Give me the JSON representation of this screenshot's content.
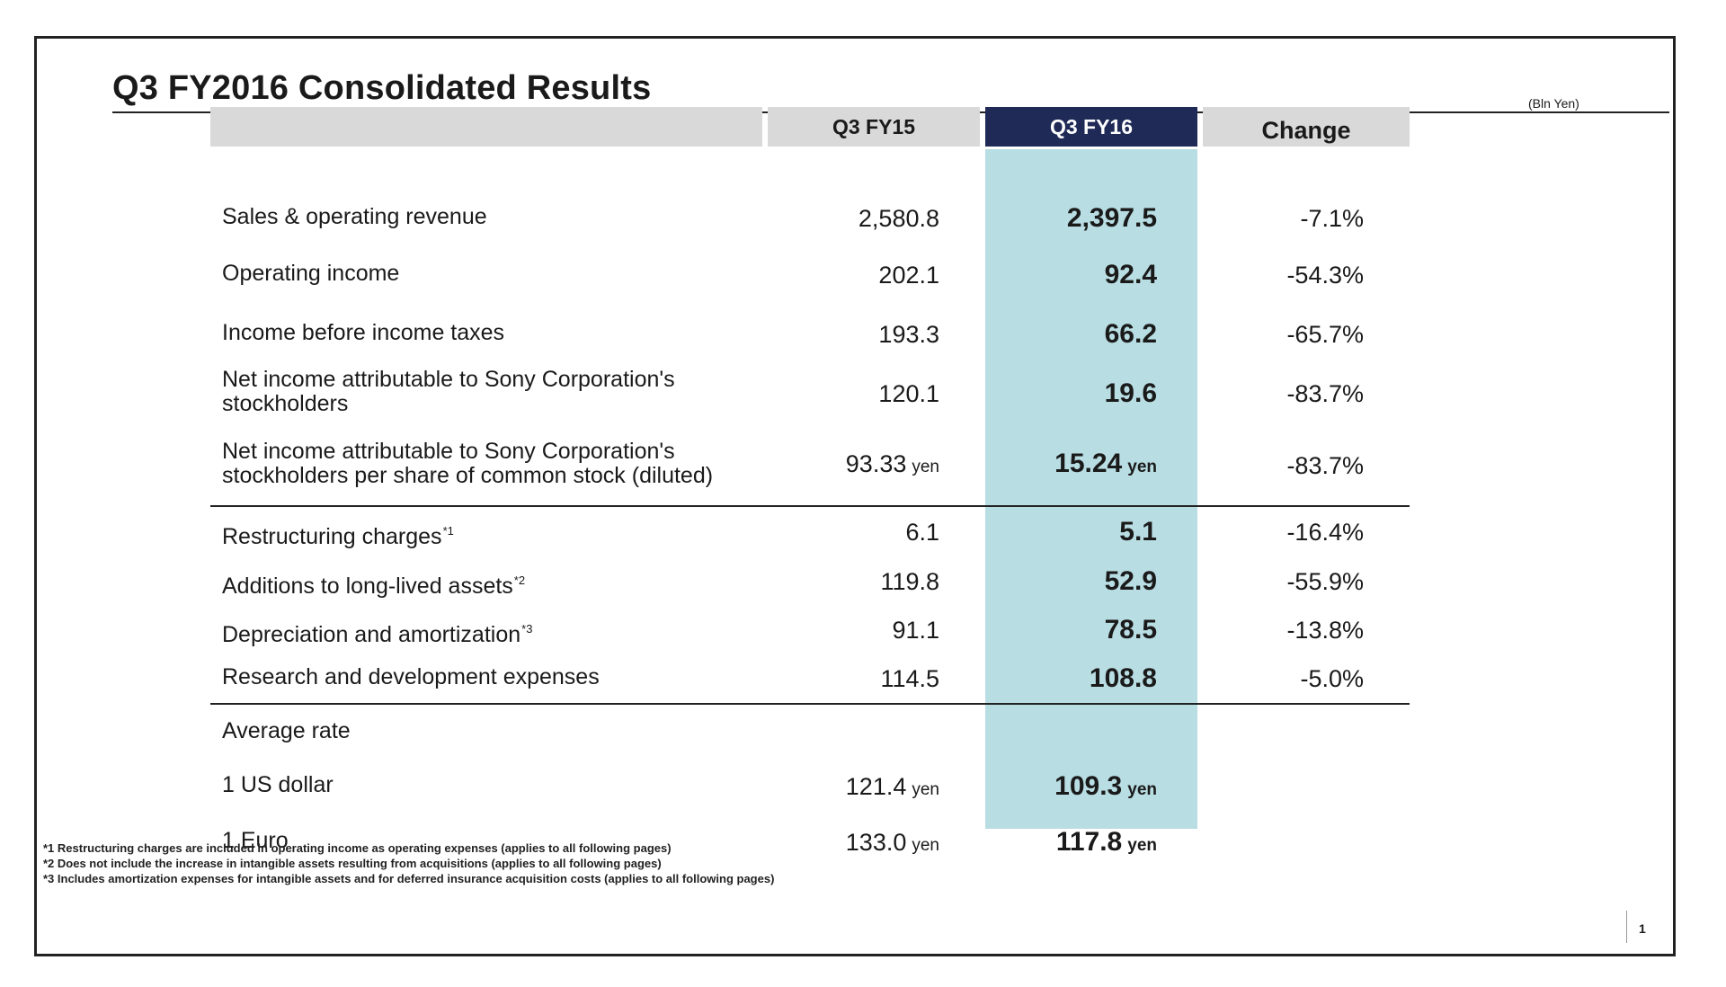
{
  "title": "Q3 FY2016  Consolidated Results",
  "unit": "(Bln Yen)",
  "headers": {
    "fy15": "Q3 FY15",
    "fy16": "Q3 FY16",
    "change": "Change"
  },
  "rows": [
    {
      "label": "Sales & operating revenue",
      "fy15": "2,580.8",
      "fy16": "2,397.5",
      "change": "-7.1%"
    },
    {
      "label": "Operating income",
      "fy15": "202.1",
      "fy16": "92.4",
      "change": "-54.3%"
    },
    {
      "label": "Income before income taxes",
      "fy15": "193.3",
      "fy16": "66.2",
      "change": "-65.7%"
    },
    {
      "label": "Net income attributable to Sony Corporation's",
      "label2": "stockholders",
      "fy15": "120.1",
      "fy16": "19.6",
      "change": "-83.7%"
    },
    {
      "label": "Net income attributable to Sony Corporation's",
      "label2": "stockholders per share of common stock (diluted)",
      "fy15": "93.33",
      "fy15_unit": "yen",
      "fy16": "15.24",
      "fy16_unit": "yen",
      "change": "-83.7%"
    },
    {
      "label": "Restructuring charges",
      "note": "*1",
      "fy15": "6.1",
      "fy16": "5.1",
      "change": "-16.4%"
    },
    {
      "label": "Additions to long-lived assets",
      "note": "*2",
      "fy15": "119.8",
      "fy16": "52.9",
      "change": "-55.9%"
    },
    {
      "label": "Depreciation and amortization",
      "note": "*3",
      "fy15": "91.1",
      "fy16": "78.5",
      "change": "-13.8%"
    },
    {
      "label": "Research and development expenses",
      "fy15": "114.5",
      "fy16": "108.8",
      "change": "-5.0%"
    },
    {
      "label": "Average rate"
    },
    {
      "label": "1 US dollar",
      "fy15": "121.4",
      "fy15_unit": "yen",
      "fy16": "109.3",
      "fy16_unit": "yen"
    },
    {
      "label": "1 Euro",
      "fy15": "133.0",
      "fy15_unit": "yen",
      "fy16": "117.8",
      "fy16_unit": "yen"
    }
  ],
  "footnotes": [
    "*1 Restructuring charges are included in operating income as operating expenses (applies to all following pages)",
    "*2 Does not include the increase in intangible assets resulting from acquisitions (applies to all following pages)",
    "*3 Includes amortization expenses for intangible assets and for deferred insurance acquisition costs (applies to all following pages)"
  ],
  "page_number": "1"
}
